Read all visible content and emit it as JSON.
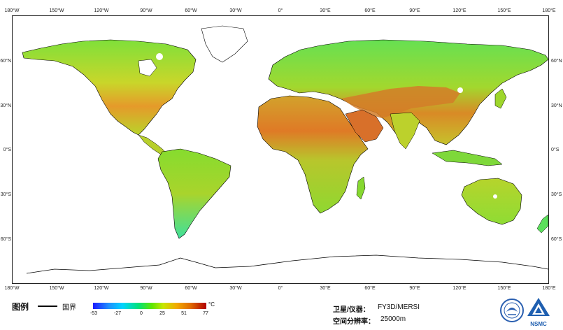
{
  "map": {
    "lon_ticks": [
      "180°W",
      "150°W",
      "120°W",
      "90°W",
      "60°W",
      "30°W",
      "0°",
      "30°E",
      "60°E",
      "90°E",
      "120°E",
      "150°E",
      "180°E"
    ],
    "lat_ticks": [
      "60°N",
      "30°N",
      "0°S",
      "30°S",
      "60°S"
    ],
    "lon_range": [
      -180,
      180
    ],
    "lat_range": [
      -90,
      90
    ],
    "projection": "equirectangular",
    "ocean_color": "#ffffff",
    "border_color": "#000000"
  },
  "legend": {
    "title": "图例",
    "border_label": "国界",
    "colorbar_ticks": [
      "-53",
      "-27",
      "0",
      "25",
      "51",
      "77"
    ],
    "colorbar_unit": "°C",
    "colorbar_colors": [
      "#1a1aff",
      "#1e90ff",
      "#00d4ff",
      "#00e27a",
      "#5fe600",
      "#c8e600",
      "#f2a900",
      "#e06b00",
      "#b00000"
    ]
  },
  "info": {
    "satellite_label": "卫星/仪器：",
    "satellite_value": "FY3D/MERSI",
    "resolution_label": "空间分辨率：",
    "resolution_value": "25000m"
  },
  "logos": {
    "cma_icon": "cma-emblem-icon",
    "nsmc_text": "NSMC"
  }
}
